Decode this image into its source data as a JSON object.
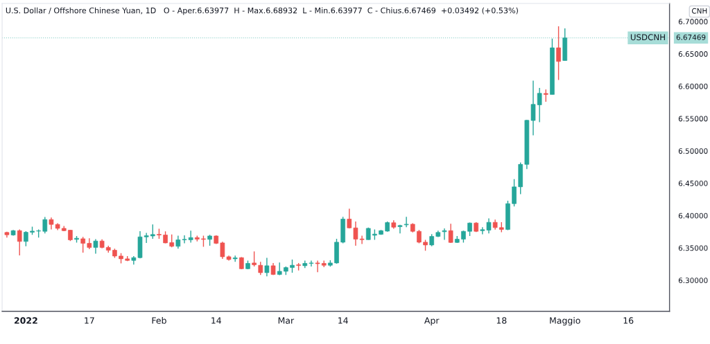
{
  "chart_data": {
    "type": "candlestick",
    "title": "U.S. Dollar / Offshore Chinese Yuan, 1D",
    "subtitle": "O - Aper.6.63977  H - Max.6.68932  L - Min.6.63977  C - Chius.6.67469  +0.03492 (+0.53%)",
    "annotations": [
      "CNH",
      "6.67469"
    ],
    "categories": [
      null,
      null,
      null,
      "2022",
      null,
      null,
      null,
      null,
      null,
      null,
      null,
      null,
      null,
      "17",
      null,
      null,
      null,
      null,
      null,
      null,
      null,
      null,
      null,
      null,
      "Feb",
      null,
      null,
      null,
      null,
      null,
      null,
      null,
      null,
      "14",
      null,
      null,
      null,
      null,
      null,
      null,
      null,
      null,
      null,
      null,
      "Mar",
      null,
      null,
      null,
      null,
      null,
      null,
      null,
      null,
      "14",
      null,
      null,
      null,
      null,
      null,
      null,
      null,
      null,
      null,
      null,
      null,
      null,
      null,
      "Apr",
      null,
      null,
      null,
      null,
      null,
      null,
      null,
      null,
      null,
      null,
      "18",
      null,
      null,
      null,
      null,
      null,
      null,
      null,
      null,
      null,
      "Maggio",
      null,
      null,
      null,
      null,
      null,
      null,
      null,
      null,
      null,
      "16",
      null,
      null,
      null,
      null,
      null,
      null
    ],
    "series": [
      {
        "ohlc": [
          [
            6.3739,
            6.375,
            6.366,
            6.3703
          ],
          [
            6.37,
            6.3778,
            6.3689,
            6.3767
          ],
          [
            6.3767,
            6.3785,
            6.3385,
            6.36
          ],
          [
            6.36,
            6.376,
            6.3525,
            6.3742
          ],
          [
            6.3742,
            6.3828,
            6.3703,
            6.376
          ],
          [
            6.376,
            6.3785,
            6.366,
            6.3765
          ],
          [
            6.3757,
            6.3978,
            6.3724,
            6.3939
          ],
          [
            6.3939,
            6.3971,
            6.3785,
            6.3864
          ],
          [
            6.3864,
            6.3882,
            6.3774,
            6.3803
          ],
          [
            6.3803,
            6.3839,
            6.376,
            6.3767
          ],
          [
            6.3774,
            6.3778,
            6.3607,
            6.3625
          ],
          [
            6.3632,
            6.3685,
            6.3582,
            6.365
          ],
          [
            6.3642,
            6.3671,
            6.3428,
            6.3571
          ],
          [
            6.3571,
            6.365,
            6.3482,
            6.3507
          ],
          [
            6.3507,
            6.3635,
            6.341,
            6.3607
          ],
          [
            6.3607,
            6.3632,
            6.3493,
            6.3507
          ],
          [
            6.3507,
            6.3535,
            6.3428,
            6.3464
          ],
          [
            6.3464,
            6.3489,
            6.3346,
            6.3375
          ],
          [
            6.3375,
            6.3418,
            6.3261,
            6.3332
          ],
          [
            6.3332,
            6.3375,
            6.3296,
            6.3307
          ],
          [
            6.3307,
            6.3375,
            6.3243,
            6.335
          ],
          [
            6.335,
            6.376,
            6.3339,
            6.3671
          ],
          [
            6.3671,
            6.3732,
            6.3578,
            6.3689
          ],
          [
            6.3685,
            6.3864,
            6.3642,
            6.3707
          ],
          [
            6.371,
            6.3796,
            6.3642,
            6.37
          ],
          [
            6.37,
            6.3757,
            6.3571,
            6.3578
          ],
          [
            6.3582,
            6.3707,
            6.351,
            6.3525
          ],
          [
            6.3525,
            6.3689,
            6.3489,
            6.3625
          ],
          [
            6.3625,
            6.3696,
            6.3571,
            6.3632
          ],
          [
            6.3625,
            6.3767,
            6.3582,
            6.366
          ],
          [
            6.366,
            6.3689,
            6.36,
            6.3635
          ],
          [
            6.3642,
            6.3689,
            6.3517,
            6.3632
          ],
          [
            6.3632,
            6.3703,
            6.3535,
            6.3685
          ],
          [
            6.3685,
            6.3696,
            6.356,
            6.3571
          ],
          [
            6.3578,
            6.3596,
            6.3332,
            6.3364
          ],
          [
            6.3364,
            6.3382,
            6.3303,
            6.3321
          ],
          [
            6.3332,
            6.3382,
            6.3286,
            6.3346
          ],
          [
            6.335,
            6.3357,
            6.3171,
            6.3178
          ],
          [
            6.3178,
            6.3303,
            6.3171,
            6.3261
          ],
          [
            6.3268,
            6.3446,
            6.3214,
            6.3239
          ],
          [
            6.3232,
            6.3286,
            6.3082,
            6.3118
          ],
          [
            6.3118,
            6.3346,
            6.3061,
            6.3225
          ],
          [
            6.3225,
            6.3268,
            6.3082,
            6.3089
          ],
          [
            6.3089,
            6.3275,
            6.3079,
            6.3139
          ],
          [
            6.3139,
            6.3214,
            6.3082,
            6.3196
          ],
          [
            6.3196,
            6.3321,
            6.3118,
            6.3232
          ],
          [
            6.3239,
            6.3268,
            6.3153,
            6.3228
          ],
          [
            6.3225,
            6.3303,
            6.3189,
            6.3261
          ],
          [
            6.3261,
            6.3303,
            6.3214,
            6.3268
          ],
          [
            6.3268,
            6.3303,
            6.3125,
            6.3257
          ],
          [
            6.3261,
            6.3303,
            6.3203,
            6.3232
          ],
          [
            6.3232,
            6.331,
            6.3211,
            6.3268
          ],
          [
            6.3268,
            6.3642,
            6.3257,
            6.3589
          ],
          [
            6.3589,
            6.3981,
            6.3571,
            6.3946
          ],
          [
            6.3946,
            6.4106,
            6.3803,
            6.381
          ],
          [
            6.381,
            6.391,
            6.3535,
            6.3635
          ],
          [
            6.3639,
            6.3689,
            6.356,
            6.3628
          ],
          [
            6.3628,
            6.3814,
            6.3625,
            6.3803
          ],
          [
            6.3696,
            6.3785,
            6.3625,
            6.3714
          ],
          [
            6.371,
            6.3778,
            6.3703,
            6.3767
          ],
          [
            6.376,
            6.391,
            6.375,
            6.3892
          ],
          [
            6.3889,
            6.3928,
            6.3796,
            6.3821
          ],
          [
            6.3828,
            6.3857,
            6.3724,
            6.3846
          ],
          [
            6.3857,
            6.3981,
            6.3821,
            6.3867
          ],
          [
            6.3867,
            6.3882,
            6.3739,
            6.3757
          ],
          [
            6.3757,
            6.3778,
            6.3571,
            6.3589
          ],
          [
            6.3589,
            6.3625,
            6.3457,
            6.3546
          ],
          [
            6.3546,
            6.3714,
            6.3525,
            6.3678
          ],
          [
            6.3678,
            6.3767,
            6.3667,
            6.3739
          ],
          [
            6.375,
            6.3803,
            6.3625,
            6.3767
          ],
          [
            6.3767,
            6.3874,
            6.3578,
            6.3585
          ],
          [
            6.3585,
            6.3685,
            6.3578,
            6.3635
          ],
          [
            6.3635,
            6.3767,
            6.3582,
            6.3757
          ],
          [
            6.3757,
            6.3892,
            6.3685,
            6.3885
          ],
          [
            6.3885,
            6.3899,
            6.3746,
            6.3757
          ],
          [
            6.3767,
            6.3821,
            6.371,
            6.3782
          ],
          [
            6.3775,
            6.3956,
            6.3725,
            6.3896
          ],
          [
            6.3896,
            6.3939,
            6.3782,
            6.3814
          ],
          [
            6.3814,
            6.3899,
            6.3742,
            6.3785
          ],
          [
            6.3785,
            6.4231,
            6.3774,
            6.4185
          ],
          [
            6.4185,
            6.4563,
            6.4142,
            6.4445
          ],
          [
            6.4445,
            6.482,
            6.4331,
            6.4792
          ],
          [
            6.4792,
            6.548,
            6.472,
            6.5473
          ],
          [
            6.547,
            6.6087,
            6.5241,
            6.572
          ],
          [
            6.5712,
            6.5973,
            6.5445,
            6.5891
          ],
          [
            6.5888,
            6.5951,
            6.5759,
            6.5873
          ],
          [
            6.5873,
            6.6737,
            6.5873,
            6.6594
          ],
          [
            6.6594,
            6.6926,
            6.6098,
            6.6383
          ],
          [
            6.63977,
            6.68932,
            6.63977,
            6.67469
          ],
          null,
          null,
          null,
          null,
          null,
          null,
          null,
          null,
          null,
          null,
          null,
          null,
          null,
          null,
          null,
          null
        ],
        "colors": [
          "#ef5350",
          "#26a69a",
          "#ef5350",
          "#26a69a",
          "#26a69a",
          "#26a69a",
          "#26a69a",
          "#ef5350",
          "#ef5350",
          "#ef5350",
          "#ef5350",
          "#26a69a",
          "#ef5350",
          "#ef5350",
          "#26a69a",
          "#ef5350",
          "#ef5350",
          "#ef5350",
          "#ef5350",
          "#ef5350",
          "#26a69a",
          "#26a69a",
          "#26a69a",
          "#26a69a",
          "#ef5350",
          "#ef5350",
          "#ef5350",
          "#26a69a",
          "#26a69a",
          "#26a69a",
          "#ef5350",
          "#ef5350",
          "#26a69a",
          "#ef5350",
          "#ef5350",
          "#ef5350",
          "#26a69a",
          "#ef5350",
          "#26a69a",
          "#ef5350",
          "#ef5350",
          "#26a69a",
          "#ef5350",
          "#26a69a",
          "#26a69a",
          "#26a69a",
          "#ef5350",
          "#26a69a",
          "#26a69a",
          "#ef5350",
          "#ef5350",
          "#26a69a",
          "#26a69a",
          "#26a69a",
          "#ef5350",
          "#ef5350",
          "#ef5350",
          "#26a69a",
          "#26a69a",
          "#26a69a",
          "#26a69a",
          "#ef5350",
          "#26a69a",
          "#26a69a",
          "#ef5350",
          "#ef5350",
          "#ef5350",
          "#26a69a",
          "#26a69a",
          "#26a69a",
          "#ef5350",
          "#26a69a",
          "#26a69a",
          "#26a69a",
          "#ef5350",
          "#26a69a",
          "#26a69a",
          "#ef5350",
          "#ef5350",
          "#26a69a",
          "#26a69a",
          "#26a69a",
          "#26a69a",
          "#26a69a",
          "#26a69a",
          "#ef5350",
          "#26a69a",
          "#ef5350",
          "#26a69a",
          null,
          null,
          null,
          null,
          null,
          null,
          null,
          null,
          null,
          null,
          null,
          null,
          null,
          null,
          null,
          null
        ]
      }
    ],
    "ylim": [
      6.252,
      6.728
    ],
    "yticks": [
      {
        "value": 6.3,
        "label": "6.30000"
      },
      {
        "value": 6.35,
        "label": "6.35000"
      },
      {
        "value": 6.4,
        "label": "6.40000"
      },
      {
        "value": 6.45,
        "label": "6.45000"
      },
      {
        "value": 6.5,
        "label": "6.50000"
      },
      {
        "value": 6.55,
        "label": "6.55000"
      },
      {
        "value": 6.6,
        "label": "6.60000"
      },
      {
        "value": 6.65,
        "label": "6.65000"
      },
      {
        "value": 6.7,
        "label": "6.70000"
      }
    ],
    "ref_lines": [
      {
        "axis": "y",
        "value": 6.67469,
        "label": "USDCNH",
        "color": "#26a69a",
        "line_style": "dotted"
      }
    ]
  }
}
